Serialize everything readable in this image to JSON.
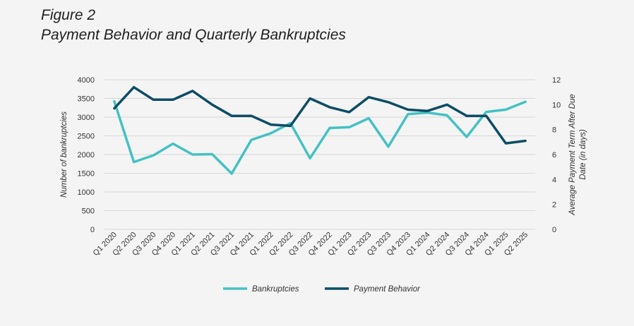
{
  "figure_label": "Figure 2",
  "title": "Payment Behavior and Quarterly Bankruptcies",
  "chart_data": {
    "type": "line",
    "categories": [
      "Q1 2020",
      "Q2 2020",
      "Q3 2020",
      "Q4 2020",
      "Q1 2021",
      "Q2 2021",
      "Q3 2021",
      "Q4 2021",
      "Q1 2022",
      "Q2 2022",
      "Q3 2022",
      "Q4 2022",
      "Q1 2023",
      "Q2 2023",
      "Q3 2023",
      "Q4 2023",
      "Q1 2024",
      "Q2 2024",
      "Q3 2024",
      "Q4 2024",
      "Q1 2025",
      "Q2 2025"
    ],
    "y_left": {
      "label": "Number of bankruptcies",
      "ylim": [
        0,
        4000
      ],
      "ticks": [
        "0",
        "500",
        "1000",
        "1500",
        "2000",
        "2500",
        "3000",
        "3500",
        "4000"
      ]
    },
    "y_right": {
      "label_line1": "Average Payment Term After Due",
      "label_line2": "Date (in days)",
      "ylim": [
        0,
        12
      ],
      "ticks": [
        "0",
        "2",
        "4",
        "6",
        "8",
        "10",
        "12"
      ]
    },
    "series": [
      {
        "name": "Bankruptcies",
        "axis": "left",
        "color": "#45c1c2",
        "values": [
          3420,
          1800,
          1980,
          2290,
          2000,
          2010,
          1490,
          2390,
          2570,
          2840,
          1900,
          2710,
          2730,
          2970,
          2210,
          3080,
          3120,
          3050,
          2470,
          3140,
          3200,
          3410
        ]
      },
      {
        "name": "Payment Behavior",
        "axis": "right",
        "color": "#0d4d65",
        "values": [
          9.7,
          11.4,
          10.4,
          10.4,
          11.1,
          10.0,
          9.1,
          9.1,
          8.4,
          8.3,
          10.5,
          9.8,
          9.4,
          10.6,
          10.2,
          9.6,
          9.5,
          10.0,
          9.1,
          9.1,
          6.9,
          7.1
        ]
      }
    ],
    "grid": true,
    "legend": "bottom-center"
  }
}
